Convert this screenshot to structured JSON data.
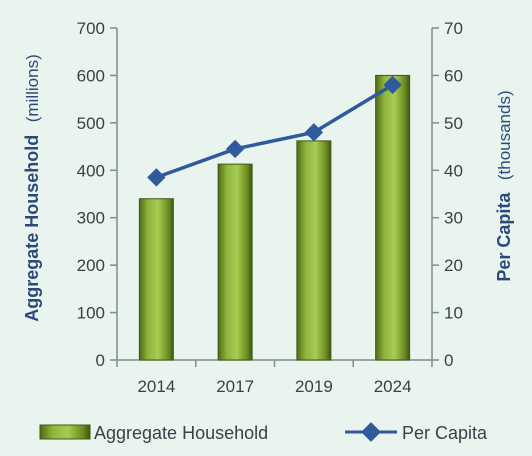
{
  "chart_data": {
    "type": "bar+line",
    "categories": [
      "2014",
      "2017",
      "2019",
      "2024"
    ],
    "series": [
      {
        "name": "Aggregate Household",
        "type": "bar",
        "axis": "left",
        "values": [
          340,
          413,
          462,
          600
        ],
        "color": "#6b8e23"
      },
      {
        "name": "Per Capita",
        "type": "line",
        "axis": "right",
        "values": [
          38.5,
          44.5,
          48,
          58
        ],
        "color": "#2f5a9b"
      }
    ],
    "y_left": {
      "label": "Aggregate Household",
      "unit": "(millions)",
      "ylim": [
        0,
        700
      ],
      "ticks": [
        "0",
        "100",
        "200",
        "300",
        "400",
        "500",
        "600",
        "700"
      ]
    },
    "y_right": {
      "label": "Per Capita",
      "unit": "(thousands)",
      "ylim": [
        0,
        70
      ],
      "ticks": [
        "0",
        "10",
        "20",
        "30",
        "40",
        "50",
        "60",
        "70"
      ]
    },
    "grid": false,
    "legend_position": "bottom"
  },
  "colors": {
    "background": "#e9f4ee",
    "bar": "#6b8e23",
    "line": "#2f5a9b",
    "axis": "#7f8c8d"
  }
}
